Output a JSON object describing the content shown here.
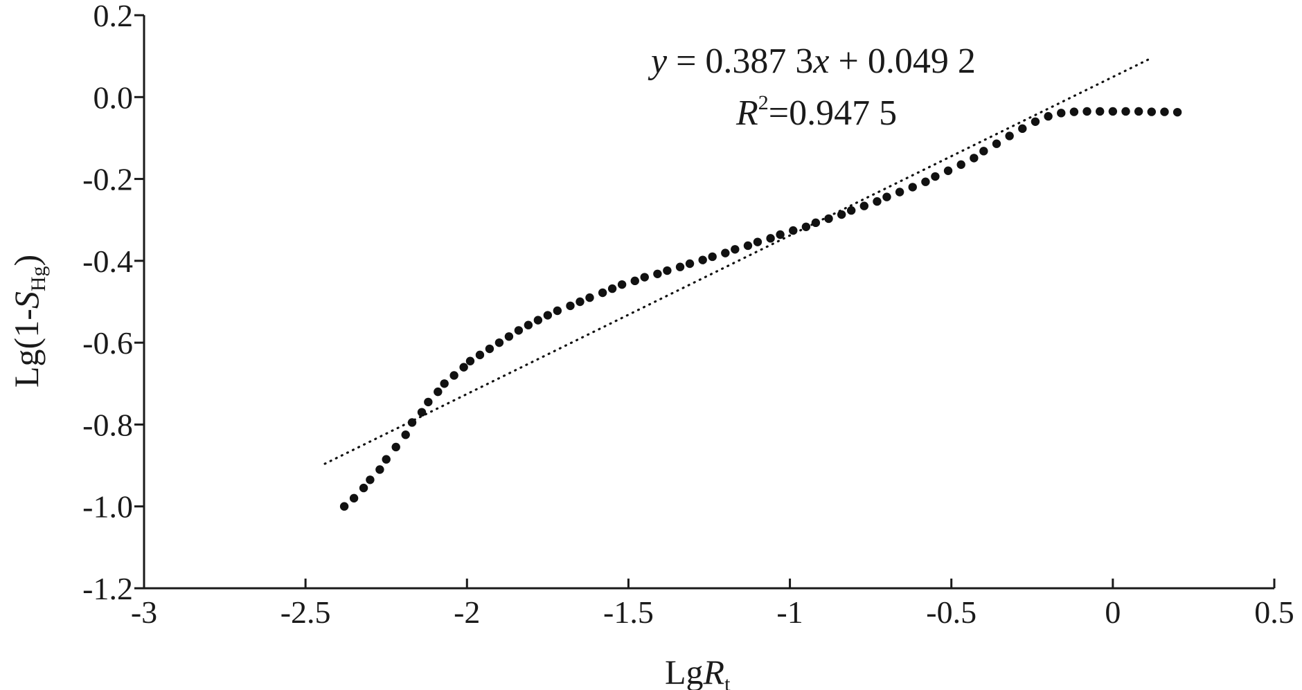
{
  "chart_data": {
    "type": "scatter",
    "title": "",
    "xlabel": {
      "main": "Lg",
      "var": "R",
      "sub": "t"
    },
    "ylabel": {
      "prefix": "Lg(1-",
      "var": "S",
      "sub": "Hg",
      "suffix": ")"
    },
    "xlim": [
      -3,
      0.5
    ],
    "ylim": [
      -1.2,
      0.2
    ],
    "x_ticks": [
      -3,
      -2.5,
      -2,
      -1.5,
      -1,
      -0.5,
      0,
      0.5
    ],
    "x_tick_labels": [
      "-3",
      "-2.5",
      "-2",
      "-1.5",
      "-1",
      "-0.5",
      "0",
      "0.5"
    ],
    "y_ticks": [
      0.2,
      0.0,
      -0.2,
      -0.4,
      -0.6,
      -0.8,
      -1.0,
      -1.2
    ],
    "y_tick_labels": [
      "0.2",
      "0.0",
      "-0.2",
      "-0.4",
      "-0.6",
      "-0.8",
      "-1.0",
      "-1.2"
    ],
    "grid": false,
    "series": [
      {
        "points": [
          [
            -2.38,
            -1.0
          ],
          [
            -2.35,
            -0.98
          ],
          [
            -2.32,
            -0.955
          ],
          [
            -2.3,
            -0.935
          ],
          [
            -2.27,
            -0.91
          ],
          [
            -2.25,
            -0.885
          ],
          [
            -2.22,
            -0.855
          ],
          [
            -2.19,
            -0.825
          ],
          [
            -2.17,
            -0.795
          ],
          [
            -2.14,
            -0.77
          ],
          [
            -2.12,
            -0.745
          ],
          [
            -2.09,
            -0.72
          ],
          [
            -2.07,
            -0.7
          ],
          [
            -2.04,
            -0.68
          ],
          [
            -2.01,
            -0.66
          ],
          [
            -1.99,
            -0.645
          ],
          [
            -1.96,
            -0.63
          ],
          [
            -1.93,
            -0.615
          ],
          [
            -1.9,
            -0.6
          ],
          [
            -1.87,
            -0.585
          ],
          [
            -1.84,
            -0.57
          ],
          [
            -1.81,
            -0.557
          ],
          [
            -1.78,
            -0.545
          ],
          [
            -1.75,
            -0.533
          ],
          [
            -1.72,
            -0.522
          ],
          [
            -1.68,
            -0.51
          ],
          [
            -1.65,
            -0.5
          ],
          [
            -1.62,
            -0.49
          ],
          [
            -1.58,
            -0.478
          ],
          [
            -1.55,
            -0.468
          ],
          [
            -1.52,
            -0.458
          ],
          [
            -1.48,
            -0.449
          ],
          [
            -1.45,
            -0.44
          ],
          [
            -1.41,
            -0.432
          ],
          [
            -1.38,
            -0.424
          ],
          [
            -1.34,
            -0.415
          ],
          [
            -1.31,
            -0.407
          ],
          [
            -1.27,
            -0.398
          ],
          [
            -1.24,
            -0.39
          ],
          [
            -1.2,
            -0.381
          ],
          [
            -1.17,
            -0.372
          ],
          [
            -1.13,
            -0.363
          ],
          [
            -1.1,
            -0.354
          ],
          [
            -1.06,
            -0.345
          ],
          [
            -1.03,
            -0.336
          ],
          [
            -0.99,
            -0.326
          ],
          [
            -0.95,
            -0.317
          ],
          [
            -0.92,
            -0.307
          ],
          [
            -0.88,
            -0.297
          ],
          [
            -0.84,
            -0.287
          ],
          [
            -0.81,
            -0.277
          ],
          [
            -0.77,
            -0.266
          ],
          [
            -0.73,
            -0.255
          ],
          [
            -0.7,
            -0.244
          ],
          [
            -0.66,
            -0.232
          ],
          [
            -0.62,
            -0.22
          ],
          [
            -0.58,
            -0.207
          ],
          [
            -0.55,
            -0.194
          ],
          [
            -0.51,
            -0.18
          ],
          [
            -0.47,
            -0.165
          ],
          [
            -0.43,
            -0.149
          ],
          [
            -0.4,
            -0.132
          ],
          [
            -0.36,
            -0.114
          ],
          [
            -0.32,
            -0.095
          ],
          [
            -0.28,
            -0.077
          ],
          [
            -0.24,
            -0.06
          ],
          [
            -0.2,
            -0.047
          ],
          [
            -0.16,
            -0.039
          ],
          [
            -0.12,
            -0.036
          ],
          [
            -0.08,
            -0.035
          ],
          [
            -0.04,
            -0.035
          ],
          [
            0.0,
            -0.035
          ],
          [
            0.04,
            -0.035
          ],
          [
            0.08,
            -0.035
          ],
          [
            0.12,
            -0.036
          ],
          [
            0.16,
            -0.036
          ],
          [
            0.2,
            -0.037
          ]
        ]
      }
    ],
    "trendline": {
      "slope": 0.3873,
      "intercept": 0.0492,
      "x_range": [
        -2.44,
        0.11
      ]
    },
    "annotations": {
      "equation": {
        "y": "y",
        "eq": " = 0.387 3",
        "x": "x",
        "rest": " + 0.049 2"
      },
      "r2": {
        "R": "R",
        "sup": "2",
        "rest": "=0.947 5"
      }
    }
  }
}
